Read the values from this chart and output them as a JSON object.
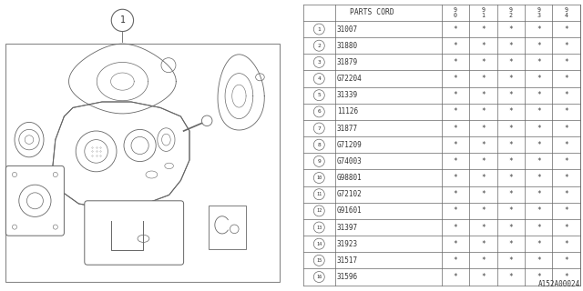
{
  "bg_color": "#ffffff",
  "line_color": "#666666",
  "text_color": "#333333",
  "parts_cord_header": "PARTS CORD",
  "year_cols": [
    "9\n0",
    "9\n1",
    "9\n2",
    "9\n3",
    "9\n4"
  ],
  "parts": [
    {
      "num": 1,
      "code": "31007"
    },
    {
      "num": 2,
      "code": "31880"
    },
    {
      "num": 3,
      "code": "31879"
    },
    {
      "num": 4,
      "code": "G72204"
    },
    {
      "num": 5,
      "code": "31339"
    },
    {
      "num": 6,
      "code": "11126"
    },
    {
      "num": 7,
      "code": "31877"
    },
    {
      "num": 8,
      "code": "G71209"
    },
    {
      "num": 9,
      "code": "G74003"
    },
    {
      "num": 10,
      "code": "G98801"
    },
    {
      "num": 11,
      "code": "G72102"
    },
    {
      "num": 12,
      "code": "G91601"
    },
    {
      "num": 13,
      "code": "31397"
    },
    {
      "num": 14,
      "code": "31923"
    },
    {
      "num": 15,
      "code": "31517"
    },
    {
      "num": 16,
      "code": "31596"
    }
  ],
  "watermark": "A152A00024",
  "star_char": "*"
}
